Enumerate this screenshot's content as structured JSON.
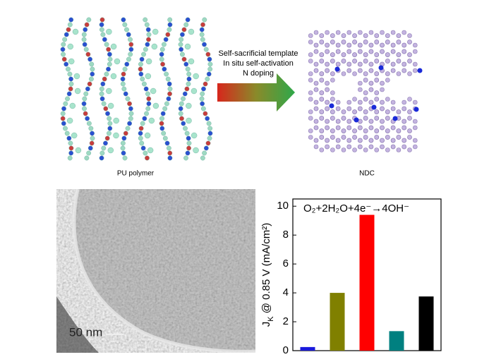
{
  "scheme": {
    "left_label": "PU polymer",
    "right_label": "NDC",
    "arrow_lines": [
      "Self-sacrificial template",
      "In situ self-activation",
      "N doping"
    ]
  },
  "micrograph": {
    "scale_bar": "50 nm"
  },
  "chart_data": {
    "type": "bar",
    "annotation": "O₂+2H₂O+4e⁻→4OH⁻",
    "ylabel": [
      "J",
      "K",
      " @ 0.85 V (mA/cm²)"
    ],
    "categories": [
      null,
      null,
      null,
      null,
      null
    ],
    "series": [
      {
        "values": [
          0.25,
          4.0,
          9.4,
          1.35,
          3.75
        ],
        "colors": [
          "#1a1adc",
          "#808000",
          "#ff0000",
          "#008080",
          "#000000"
        ]
      }
    ],
    "ylim": [
      0,
      10.5
    ],
    "yticks": [
      0,
      2,
      4,
      6,
      8,
      10
    ]
  }
}
